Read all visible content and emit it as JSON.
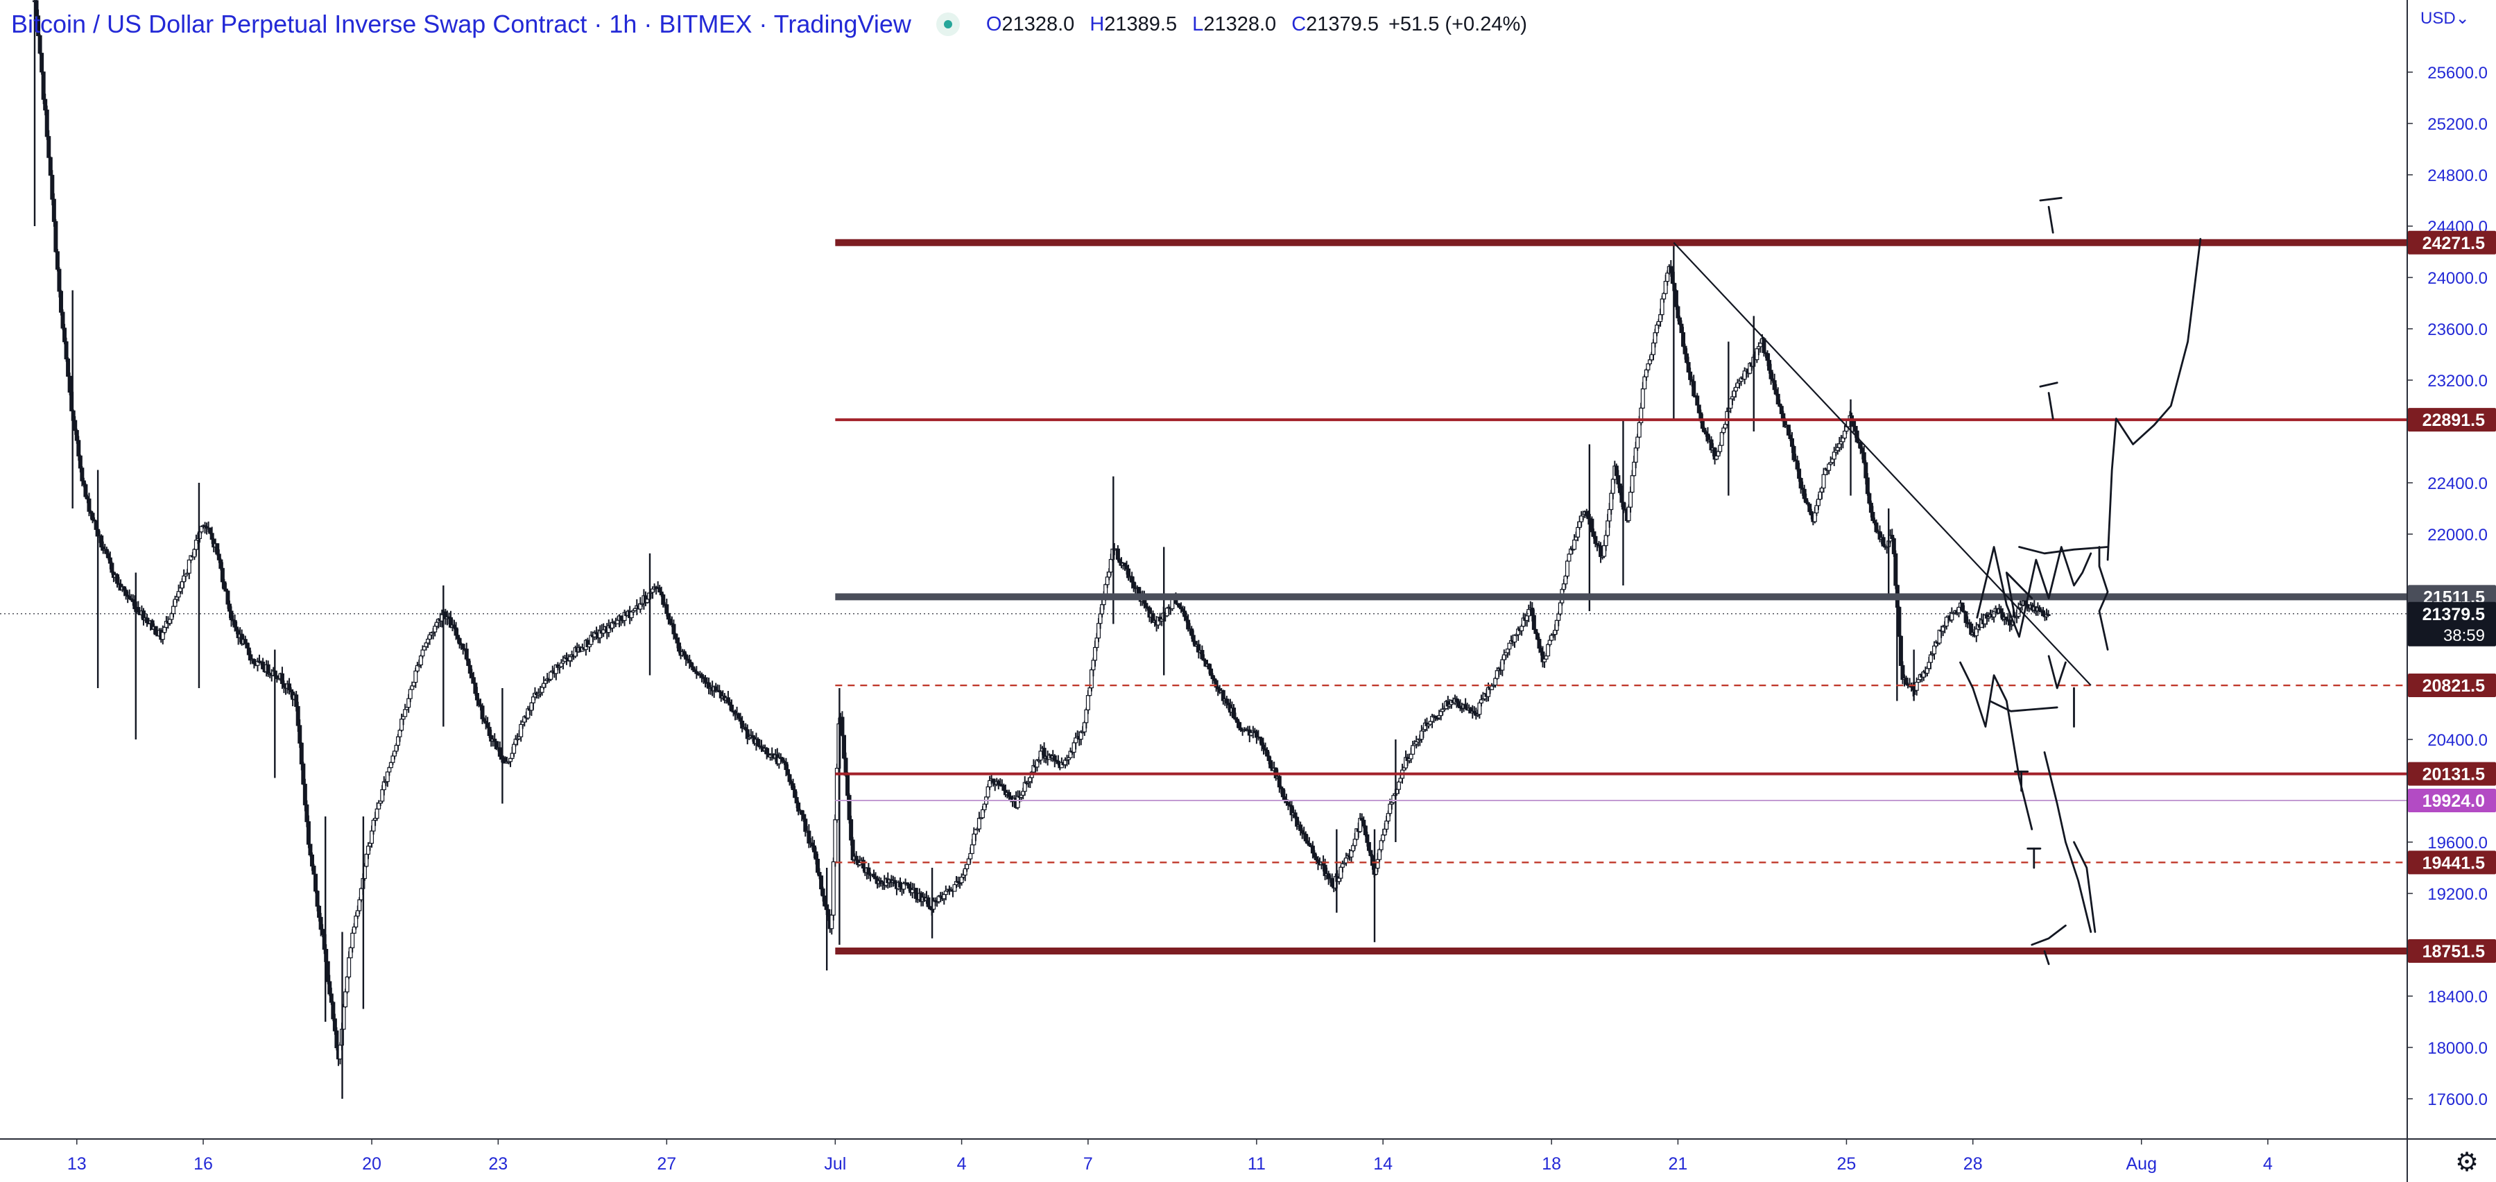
{
  "header": {
    "title": "Bitcoin / US Dollar Perpetual Inverse Swap Contract · 1h · BITMEX · TradingView",
    "ohlc": [
      {
        "key": "O",
        "value": "21328.0"
      },
      {
        "key": "H",
        "value": "21389.5"
      },
      {
        "key": "L",
        "value": "21328.0"
      },
      {
        "key": "C",
        "value": "21379.5"
      }
    ],
    "change": "+51.5 (+0.24%)"
  },
  "price_scale": {
    "currency": "USD",
    "countdown": "38:59",
    "settings_icon": "gear-icon"
  },
  "chart_data": {
    "type": "candlestick",
    "interval": "1h",
    "grid": false,
    "ylim": [
      17390,
      26150
    ],
    "xlim": [
      "Jun 12",
      "Aug 6"
    ],
    "y_ticks": [
      "17600.0",
      "18000.0",
      "18400.0",
      "19200.0",
      "19600.0",
      "20400.0",
      "22000.0",
      "22400.0",
      "23200.0",
      "23600.0",
      "24000.0",
      "24400.0",
      "24800.0",
      "25200.0",
      "25600.0"
    ],
    "x_ticks": [
      {
        "label": "13",
        "x": 13.0
      },
      {
        "label": "16",
        "x": 16.0
      },
      {
        "label": "20",
        "x": 20.0
      },
      {
        "label": "23",
        "x": 23.0
      },
      {
        "label": "27",
        "x": 27.0
      },
      {
        "label": "Jul",
        "x": 31.0
      },
      {
        "label": "4",
        "x": 34.0
      },
      {
        "label": "7",
        "x": 37.0
      },
      {
        "label": "11",
        "x": 41.0
      },
      {
        "label": "14",
        "x": 44.0
      },
      {
        "label": "18",
        "x": 48.0
      },
      {
        "label": "21",
        "x": 51.0
      },
      {
        "label": "25",
        "x": 55.0
      },
      {
        "label": "28",
        "x": 58.0
      },
      {
        "label": "Aug",
        "x": 62.0
      },
      {
        "label": "4",
        "x": 65.0
      }
    ],
    "price_path": [
      [
        12.0,
        26150
      ],
      [
        12.3,
        25100
      ],
      [
        12.6,
        23800
      ],
      [
        12.9,
        22900
      ],
      [
        13.2,
        22300
      ],
      [
        13.6,
        21900
      ],
      [
        14.0,
        21600
      ],
      [
        14.5,
        21400
      ],
      [
        15.0,
        21200
      ],
      [
        15.5,
        21600
      ],
      [
        16.0,
        22100
      ],
      [
        16.3,
        21900
      ],
      [
        16.7,
        21300
      ],
      [
        17.2,
        21000
      ],
      [
        17.8,
        20900
      ],
      [
        18.2,
        20700
      ],
      [
        18.5,
        19600
      ],
      [
        18.9,
        18700
      ],
      [
        19.2,
        17900
      ],
      [
        19.5,
        18800
      ],
      [
        20.0,
        19700
      ],
      [
        20.6,
        20400
      ],
      [
        21.2,
        21100
      ],
      [
        21.7,
        21400
      ],
      [
        22.2,
        21100
      ],
      [
        22.7,
        20500
      ],
      [
        23.2,
        20200
      ],
      [
        23.8,
        20700
      ],
      [
        24.5,
        21000
      ],
      [
        25.3,
        21200
      ],
      [
        26.2,
        21400
      ],
      [
        26.8,
        21600
      ],
      [
        27.3,
        21100
      ],
      [
        27.8,
        20900
      ],
      [
        28.4,
        20700
      ],
      [
        29.0,
        20400
      ],
      [
        29.8,
        20200
      ],
      [
        30.5,
        19500
      ],
      [
        30.9,
        18900
      ],
      [
        31.1,
        20700
      ],
      [
        31.4,
        19500
      ],
      [
        32.0,
        19300
      ],
      [
        32.7,
        19250
      ],
      [
        33.3,
        19100
      ],
      [
        34.0,
        19300
      ],
      [
        34.7,
        20100
      ],
      [
        35.3,
        19900
      ],
      [
        35.9,
        20300
      ],
      [
        36.4,
        20200
      ],
      [
        36.9,
        20500
      ],
      [
        37.3,
        21400
      ],
      [
        37.6,
        21900
      ],
      [
        38.1,
        21600
      ],
      [
        38.6,
        21300
      ],
      [
        39.1,
        21500
      ],
      [
        39.6,
        21100
      ],
      [
        40.1,
        20800
      ],
      [
        40.6,
        20500
      ],
      [
        41.1,
        20400
      ],
      [
        41.6,
        20000
      ],
      [
        42.0,
        19700
      ],
      [
        42.4,
        19500
      ],
      [
        42.8,
        19250
      ],
      [
        43.2,
        19500
      ],
      [
        43.5,
        19800
      ],
      [
        43.8,
        19350
      ],
      [
        44.1,
        19800
      ],
      [
        44.5,
        20200
      ],
      [
        45.0,
        20500
      ],
      [
        45.6,
        20700
      ],
      [
        46.2,
        20600
      ],
      [
        46.7,
        20900
      ],
      [
        47.1,
        21200
      ],
      [
        47.5,
        21400
      ],
      [
        47.8,
        21000
      ],
      [
        48.1,
        21300
      ],
      [
        48.4,
        21800
      ],
      [
        48.8,
        22200
      ],
      [
        49.2,
        21800
      ],
      [
        49.5,
        22500
      ],
      [
        49.8,
        22100
      ],
      [
        50.2,
        23200
      ],
      [
        50.5,
        23600
      ],
      [
        50.8,
        24100
      ],
      [
        51.0,
        23700
      ],
      [
        51.3,
        23200
      ],
      [
        51.6,
        22800
      ],
      [
        51.9,
        22600
      ],
      [
        52.3,
        23100
      ],
      [
        52.7,
        23300
      ],
      [
        53.0,
        23500
      ],
      [
        53.3,
        23100
      ],
      [
        53.6,
        22800
      ],
      [
        53.9,
        22400
      ],
      [
        54.2,
        22100
      ],
      [
        54.5,
        22500
      ],
      [
        54.8,
        22700
      ],
      [
        55.1,
        22900
      ],
      [
        55.4,
        22600
      ],
      [
        55.6,
        22100
      ],
      [
        55.9,
        21900
      ],
      [
        56.1,
        22000
      ],
      [
        56.3,
        20900
      ],
      [
        56.6,
        20800
      ],
      [
        56.9,
        20950
      ],
      [
        57.3,
        21300
      ],
      [
        57.7,
        21450
      ],
      [
        58.0,
        21200
      ],
      [
        58.3,
        21350
      ],
      [
        58.6,
        21400
      ],
      [
        58.9,
        21300
      ],
      [
        59.2,
        21500
      ],
      [
        59.5,
        21400
      ],
      [
        59.8,
        21379.5
      ]
    ],
    "wicks": [
      {
        "x": 12.0,
        "low": 24400,
        "high": 26150
      },
      {
        "x": 12.9,
        "low": 22200,
        "high": 23900
      },
      {
        "x": 13.5,
        "low": 20800,
        "high": 22500
      },
      {
        "x": 14.4,
        "low": 20400,
        "high": 21700
      },
      {
        "x": 15.9,
        "low": 20800,
        "high": 22400
      },
      {
        "x": 17.7,
        "low": 20100,
        "high": 21100
      },
      {
        "x": 18.9,
        "low": 18200,
        "high": 19800
      },
      {
        "x": 19.3,
        "low": 17600,
        "high": 18900
      },
      {
        "x": 19.8,
        "low": 18300,
        "high": 19800
      },
      {
        "x": 21.7,
        "low": 20500,
        "high": 21600
      },
      {
        "x": 23.1,
        "low": 19900,
        "high": 20800
      },
      {
        "x": 26.6,
        "low": 20900,
        "high": 21850
      },
      {
        "x": 30.8,
        "low": 18600,
        "high": 19400
      },
      {
        "x": 31.1,
        "low": 18800,
        "high": 20800
      },
      {
        "x": 33.3,
        "low": 18850,
        "high": 19400
      },
      {
        "x": 37.6,
        "low": 21300,
        "high": 22450
      },
      {
        "x": 38.8,
        "low": 20900,
        "high": 21900
      },
      {
        "x": 42.9,
        "low": 19050,
        "high": 19700
      },
      {
        "x": 43.8,
        "low": 18820,
        "high": 19700
      },
      {
        "x": 44.3,
        "low": 19600,
        "high": 20400
      },
      {
        "x": 48.9,
        "low": 21400,
        "high": 22700
      },
      {
        "x": 49.7,
        "low": 21600,
        "high": 22900
      },
      {
        "x": 50.9,
        "low": 22900,
        "high": 24280
      },
      {
        "x": 52.2,
        "low": 22300,
        "high": 23500
      },
      {
        "x": 52.8,
        "low": 22800,
        "high": 23700
      },
      {
        "x": 55.1,
        "low": 22300,
        "high": 23050
      },
      {
        "x": 56.0,
        "low": 21500,
        "high": 22200
      },
      {
        "x": 56.2,
        "low": 20700,
        "high": 21600
      },
      {
        "x": 56.6,
        "low": 20700,
        "high": 21100
      }
    ],
    "levels": [
      {
        "price": 24271.5,
        "label": "24271.5",
        "style": "thick",
        "color": "#7d1d22"
      },
      {
        "price": 22891.5,
        "label": "22891.5",
        "style": "solid",
        "color": "#a3222a"
      },
      {
        "price": 21511.5,
        "label": "21511.5",
        "style": "thick",
        "color": "#4a4e5a"
      },
      {
        "price": 20821.5,
        "label": "20821.5",
        "style": "dashed",
        "color": "#c0392b"
      },
      {
        "price": 20131.5,
        "label": "20131.5",
        "style": "solid",
        "color": "#a3222a"
      },
      {
        "price": 19924.0,
        "label": "19924.0",
        "style": "thin",
        "color": "#c39bd3",
        "label_color": "#b34bc4"
      },
      {
        "price": 19441.5,
        "label": "19441.5",
        "style": "dashed",
        "color": "#c0392b"
      },
      {
        "price": 18751.5,
        "label": "18751.5",
        "style": "thick",
        "color": "#7d1d22"
      }
    ],
    "levels_from_x": 31.0,
    "current_price": {
      "price": 21379.5,
      "label": "21379.5"
    },
    "trendline": [
      [
        50.9,
        24271.5
      ],
      [
        60.8,
        20821.5
      ]
    ],
    "drawings": [
      {
        "points": [
          [
            58.1,
            21350
          ],
          [
            58.5,
            21900
          ],
          [
            58.8,
            21450
          ],
          [
            59.1,
            21200
          ],
          [
            59.5,
            21800
          ],
          [
            59.8,
            21500
          ],
          [
            60.1,
            21900
          ],
          [
            60.4,
            21600
          ],
          [
            60.6,
            21700
          ],
          [
            60.8,
            21850
          ]
        ]
      },
      {
        "points": [
          [
            59.1,
            21900
          ],
          [
            59.7,
            21850
          ],
          [
            60.4,
            21880
          ],
          [
            61.2,
            21900
          ]
        ]
      },
      {
        "points": [
          [
            59.0,
            21350
          ],
          [
            58.8,
            21700
          ],
          [
            59.4,
            21500
          ]
        ]
      },
      {
        "points": [
          [
            61.0,
            21900
          ],
          [
            61.0,
            21750
          ],
          [
            61.2,
            21550
          ],
          [
            61.0,
            21400
          ],
          [
            61.2,
            21100
          ]
        ]
      },
      {
        "points": [
          [
            61.2,
            21800
          ],
          [
            61.3,
            22500
          ],
          [
            61.4,
            22900
          ],
          [
            61.8,
            22700
          ],
          [
            62.3,
            22850
          ],
          [
            62.7,
            23000
          ],
          [
            63.1,
            23500
          ],
          [
            63.4,
            24300
          ]
        ]
      },
      {
        "points": [
          [
            57.7,
            21000
          ],
          [
            58.0,
            20800
          ],
          [
            58.3,
            20500
          ],
          [
            58.5,
            20900
          ],
          [
            58.8,
            20700
          ],
          [
            59.0,
            20300
          ],
          [
            59.1,
            20100
          ],
          [
            59.4,
            19700
          ]
        ]
      },
      {
        "points": [
          [
            58.4,
            20700
          ],
          [
            58.9,
            20620
          ],
          [
            60.0,
            20650
          ]
        ]
      },
      {
        "points": [
          [
            59.7,
            20300
          ],
          [
            60.0,
            19900
          ],
          [
            60.2,
            19600
          ],
          [
            60.5,
            19300
          ],
          [
            60.8,
            18900
          ]
        ]
      },
      {
        "points": [
          [
            59.8,
            21050
          ],
          [
            60.0,
            20800
          ],
          [
            60.2,
            21000
          ]
        ]
      },
      {
        "points": [
          [
            60.4,
            19600
          ],
          [
            60.7,
            19400
          ],
          [
            60.9,
            18900
          ]
        ]
      },
      {
        "points": [
          [
            59.6,
            24600
          ],
          [
            60.1,
            24620
          ]
        ]
      },
      {
        "points": [
          [
            59.8,
            24550
          ],
          [
            59.9,
            24350
          ]
        ]
      },
      {
        "points": [
          [
            59.6,
            23150
          ],
          [
            60.0,
            23180
          ]
        ]
      },
      {
        "points": [
          [
            59.8,
            23100
          ],
          [
            59.9,
            22900
          ]
        ]
      },
      {
        "points": [
          [
            59.0,
            20150
          ],
          [
            59.3,
            20150
          ]
        ]
      },
      {
        "points": [
          [
            59.15,
            20150
          ],
          [
            59.15,
            20000
          ]
        ]
      },
      {
        "points": [
          [
            59.3,
            19550
          ],
          [
            59.6,
            19550
          ]
        ]
      },
      {
        "points": [
          [
            59.45,
            19550
          ],
          [
            59.45,
            19400
          ]
        ]
      },
      {
        "points": [
          [
            59.4,
            18800
          ],
          [
            59.8,
            18850
          ],
          [
            60.2,
            18950
          ]
        ]
      },
      {
        "points": [
          [
            59.7,
            18750
          ],
          [
            59.8,
            18650
          ]
        ]
      },
      {
        "points": [
          [
            60.4,
            20800
          ],
          [
            60.4,
            20500
          ]
        ]
      }
    ],
    "crosshair_price": 21379.5
  }
}
